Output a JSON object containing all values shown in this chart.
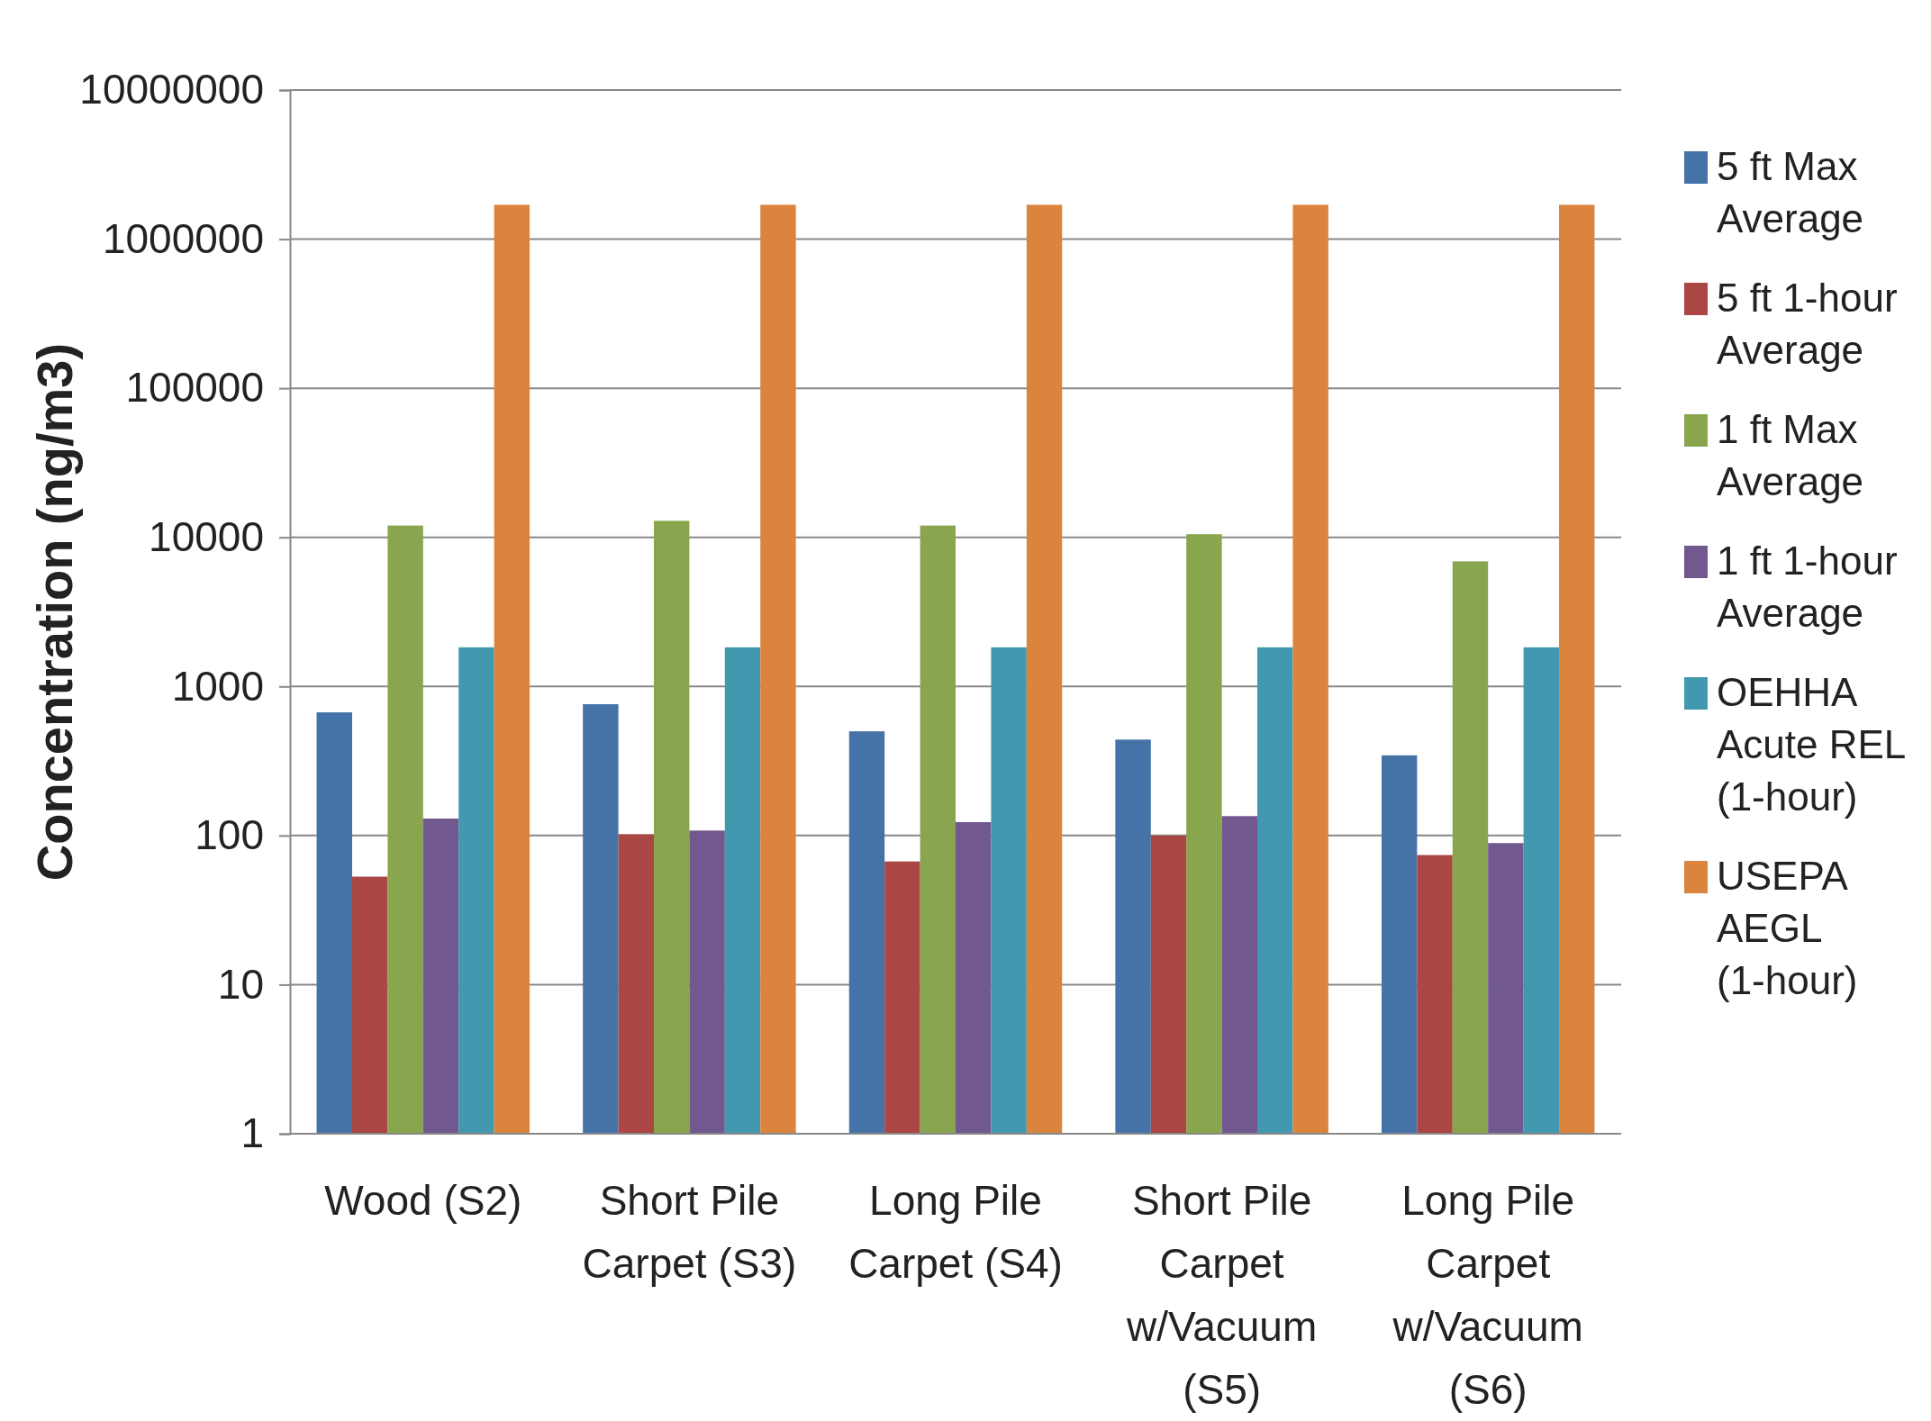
{
  "chart_data": {
    "type": "bar",
    "ylabel": "Concentration (ng/m3)",
    "log": true,
    "grid": "y",
    "legend": "right",
    "categories": [
      "Wood (S2)",
      "Short Pile Carpet (S3)",
      "Long Pile Carpet (S4)",
      "Short Pile Carpet w/Vacuum (S5)",
      "Long Pile Carpet w/Vacuum (S6)"
    ],
    "ylim": [
      1,
      10000000
    ],
    "yticks": [
      1,
      10,
      100,
      1000,
      10000,
      100000,
      1000000,
      10000000
    ],
    "series": [
      {
        "name": "5 ft Max Average",
        "color": "#4572a7",
        "values": [
          670,
          760,
          500,
          440,
          345
        ]
      },
      {
        "name": "5 ft 1-hour Average",
        "color": "#aa4643",
        "values": [
          53,
          102,
          67,
          100,
          74
        ]
      },
      {
        "name": "1 ft Max Average",
        "color": "#89a54e",
        "values": [
          12000,
          12900,
          12000,
          10500,
          6900
        ]
      },
      {
        "name": "1 ft 1-hour Average",
        "color": "#71588f",
        "values": [
          130,
          108,
          123,
          135,
          89
        ]
      },
      {
        "name": "OEHHA Acute REL (1-hour)",
        "color": "#4198af",
        "values": [
          1830,
          1830,
          1830,
          1830,
          1830
        ]
      },
      {
        "name": "USEPA AEGL (1-hour)",
        "color": "#db843d",
        "values": [
          1700000,
          1700000,
          1700000,
          1700000,
          1700000
        ]
      }
    ]
  }
}
